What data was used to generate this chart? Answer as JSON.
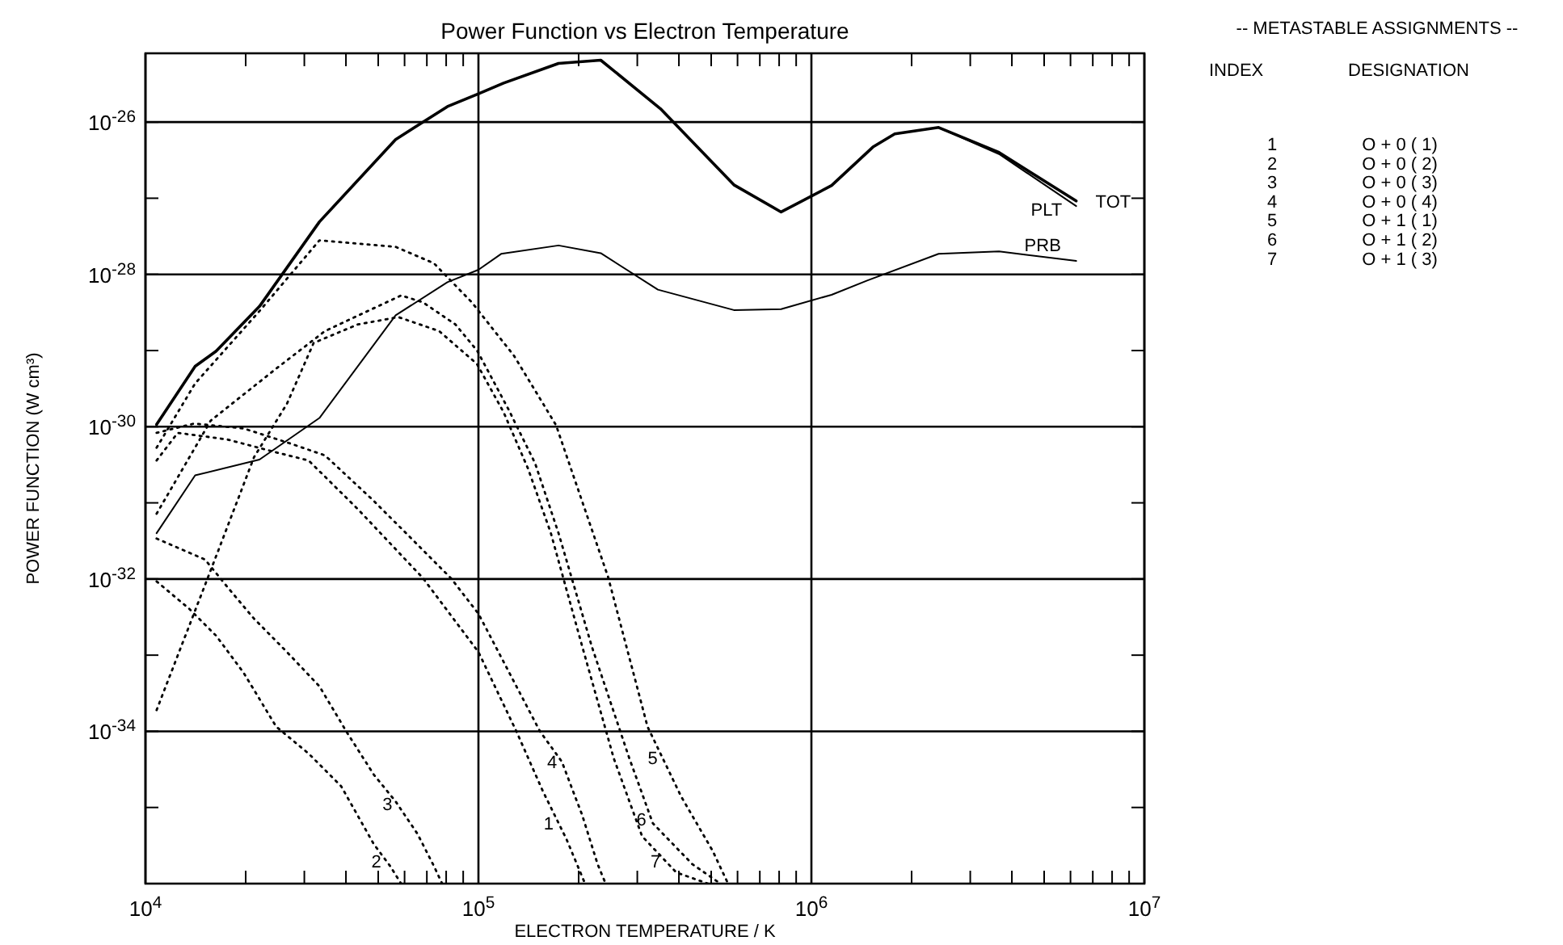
{
  "chart_data": {
    "type": "line",
    "title": "Power Function vs Electron Temperature",
    "xlabel": "ELECTRON TEMPERATURE / K",
    "ylabel": "POWER FUNCTION (W cm³)",
    "log": "xy",
    "grid": true,
    "xlim": [
      10000,
      10000000
    ],
    "ylim": [
      1e-36,
      8e-26
    ],
    "xticks": [
      {
        "value": 10000,
        "label": "10$^{4}$"
      },
      {
        "value": 20000,
        "label": null
      },
      {
        "value": 30000,
        "label": null
      },
      {
        "value": 40000,
        "label": null
      },
      {
        "value": 50000,
        "label": null
      },
      {
        "value": 60000,
        "label": null
      },
      {
        "value": 70000,
        "label": null
      },
      {
        "value": 80000,
        "label": null
      },
      {
        "value": 90000,
        "label": null
      },
      {
        "value": 100000,
        "label": "10$^{5}$"
      },
      {
        "value": 200000,
        "label": null
      },
      {
        "value": 300000,
        "label": null
      },
      {
        "value": 400000,
        "label": null
      },
      {
        "value": 500000,
        "label": null
      },
      {
        "value": 600000,
        "label": null
      },
      {
        "value": 700000,
        "label": null
      },
      {
        "value": 800000,
        "label": null
      },
      {
        "value": 900000,
        "label": null
      },
      {
        "value": 1000000,
        "label": "10$^{6}$"
      },
      {
        "value": 2000000,
        "label": null
      },
      {
        "value": 3000000,
        "label": null
      },
      {
        "value": 4000000,
        "label": null
      },
      {
        "value": 5000000,
        "label": null
      },
      {
        "value": 6000000,
        "label": null
      },
      {
        "value": 7000000,
        "label": null
      },
      {
        "value": 8000000,
        "label": null
      },
      {
        "value": 9000000,
        "label": null
      },
      {
        "value": 10000000,
        "label": "10$^{7}$"
      }
    ],
    "yticks": [
      {
        "value": 1e-35,
        "label": null
      },
      {
        "value": 1e-34,
        "label": "10$^{-34}$"
      },
      {
        "value": 1e-33,
        "label": null
      },
      {
        "value": 1e-32,
        "label": "10$^{-32}$"
      },
      {
        "value": 1e-31,
        "label": null
      },
      {
        "value": 1e-30,
        "label": "10$^{-30}$"
      },
      {
        "value": 1e-29,
        "label": null
      },
      {
        "value": 1e-28,
        "label": "10$^{-28}$"
      },
      {
        "value": 1e-27,
        "label": null
      },
      {
        "value": 1e-26,
        "label": "10$^{-26}$"
      }
    ],
    "series": [
      {
        "name": "TOT",
        "color": "#000000",
        "line_style": "solid",
        "x": [
          10800,
          14100,
          16300,
          22000,
          33300,
          56400,
          80700,
          100000,
          119000,
          174000,
          233000,
          352000,
          585000,
          811000,
          1150000,
          1530000,
          1780000,
          2410000,
          3660000,
          6240000
        ],
        "values": [
          1.07e-30,
          6.2e-30,
          9.8e-30,
          3.8e-29,
          4.9e-28,
          5.9e-27,
          1.6e-26,
          2.35e-26,
          3.25e-26,
          5.9e-26,
          6.5e-26,
          1.5e-26,
          1.5e-27,
          6.6e-28,
          1.47e-27,
          4.7e-27,
          7e-27,
          8.5e-27,
          4e-27,
          9.2e-28
        ]
      },
      {
        "name": "PLT",
        "color": "#000000",
        "line_style": "solid",
        "x": [
          10800,
          14100,
          16300,
          22000,
          33300,
          56400,
          80700,
          100000,
          119000,
          174000,
          233000,
          352000,
          585000,
          811000,
          1150000,
          1530000,
          1780000,
          2410000,
          3660000,
          6240000
        ],
        "values": [
          1.07e-30,
          6.2e-30,
          9.8e-30,
          3.8e-29,
          4.9e-28,
          5.9e-27,
          1.6e-26,
          2.35e-26,
          3.25e-26,
          5.9e-26,
          6.5e-26,
          1.5e-26,
          1.5e-27,
          6.6e-28,
          1.47e-27,
          4.7e-27,
          7e-27,
          8.5e-27,
          3.8e-27,
          7.9e-28
        ]
      },
      {
        "name": "PRB",
        "color": "#000000",
        "line_style": "solid",
        "x": [
          10800,
          14100,
          22000,
          33300,
          56400,
          80700,
          100000,
          117000,
          174000,
          233000,
          346000,
          585000,
          811000,
          1150000,
          1470000,
          2410000,
          3660000,
          6240000
        ],
        "values": [
          4e-32,
          2.3e-31,
          3.7e-31,
          1.3e-30,
          2.9e-29,
          7.9e-29,
          1.15e-28,
          1.86e-28,
          2.4e-28,
          1.9e-28,
          6.3e-29,
          3.4e-29,
          3.5e-29,
          5.4e-29,
          8.3e-29,
          1.86e-28,
          2e-28,
          1.5e-28
        ]
      },
      {
        "name": "1",
        "color": "#000000",
        "line_style": "dotted",
        "x": [
          10800,
          12500,
          17600,
          24700,
          30900,
          43400,
          68100,
          100000,
          130000,
          156000,
          184000,
          209000
        ],
        "values": [
          3.6e-31,
          8.3e-31,
          6.8e-31,
          4.6e-31,
          3.6e-31,
          8.3e-32,
          1.03e-32,
          1.1e-33,
          1e-34,
          1.65e-35,
          3.8e-36,
          1e-36
        ]
      },
      {
        "name": "2",
        "color": "#000000",
        "line_style": "dotted",
        "x": [
          10800,
          13500,
          16300,
          19700,
          24700,
          30900,
          38700,
          48500,
          54300,
          58600
        ],
        "values": [
          9.3e-33,
          4.1e-33,
          1.8e-33,
          5.9e-34,
          1.15e-34,
          5.1e-35,
          1.9e-35,
          3.3e-36,
          1.7e-36,
          1e-36
        ]
      },
      {
        "name": "3",
        "color": "#000000",
        "line_style": "dotted",
        "x": [
          10800,
          15100,
          17600,
          21200,
          26600,
          33300,
          40200,
          48500,
          56400,
          65600,
          73500,
          77800
        ],
        "values": [
          3.4e-32,
          1.8e-32,
          7.9e-33,
          3e-33,
          1.1e-33,
          3.9e-34,
          9.8e-35,
          2.7e-35,
          1.2e-35,
          4.5e-36,
          1.7e-36,
          1e-36
        ]
      },
      {
        "name": "4",
        "color": "#000000",
        "line_style": "dotted",
        "x": [
          10800,
          14000,
          19700,
          27600,
          34600,
          48500,
          82600,
          100000,
          153000,
          178000,
          205000,
          228000,
          241000
        ],
        "values": [
          8.3e-31,
          1.1e-30,
          9.5e-31,
          5.9e-31,
          4.2e-31,
          1.06e-31,
          1.03e-32,
          3.5e-33,
          1e-34,
          4e-35,
          7.9e-36,
          1.8e-36,
          1e-36
        ]
      },
      {
        "name": "5",
        "color": "#000000",
        "line_style": "dotted",
        "x": [
          10800,
          14100,
          22000,
          33300,
          56400,
          73500,
          95500,
          128000,
          171000,
          245000,
          322000,
          406000,
          505000,
          562000
        ],
        "values": [
          5.3e-31,
          3.7e-30,
          3.3e-29,
          2.8e-28,
          2.3e-28,
          1.4e-28,
          4.3e-29,
          8.5e-30,
          1.05e-30,
          1.07e-32,
          1.15e-34,
          1.4e-35,
          2.7e-36,
          1e-36
        ]
      },
      {
        "name": "6",
        "color": "#000000",
        "line_style": "dotted",
        "x": [
          10800,
          15700,
          24700,
          34600,
          58600,
          68100,
          85300,
          99200,
          123000,
          148000,
          174000,
          219000,
          284000,
          334000,
          439000,
          533000
        ],
        "values": [
          7.2e-32,
          1.2e-30,
          5.8e-30,
          1.8e-29,
          5.3e-29,
          4.3e-29,
          2.2e-29,
          9.9e-30,
          1.7e-30,
          3.3e-31,
          4e-32,
          1.3e-33,
          4.4e-35,
          6.2e-36,
          1.8e-36,
          1e-36
        ]
      },
      {
        "name": "7",
        "color": "#000000",
        "line_style": "dotted",
        "x": [
          10800,
          15700,
          21200,
          26600,
          32000,
          43400,
          57500,
          76200,
          98900,
          119000,
          141000,
          165000,
          205000,
          255000,
          310000,
          393000,
          489000
        ],
        "values": [
          1.9e-34,
          1.3e-32,
          4e-31,
          2e-30,
          1.26e-29,
          2.2e-29,
          2.75e-29,
          1.8e-29,
          6.7e-30,
          1.55e-30,
          2.8e-31,
          4e-32,
          1.3e-33,
          4.4e-35,
          4.2e-36,
          1.4e-36,
          1e-36
        ]
      }
    ],
    "annotations": [
      "-- METASTABLE ASSIGNMENTS --",
      "INDEX",
      "DESIGNATION",
      "1",
      "O + 0 ( 1)",
      "2",
      "O + 0 ( 2)",
      "3",
      "O + 0 ( 3)",
      "4",
      "O + 0 ( 4)",
      "5",
      "O + 1 ( 1)",
      "6",
      "O + 1 ( 2)",
      "7",
      "O + 1 ( 3)"
    ]
  }
}
